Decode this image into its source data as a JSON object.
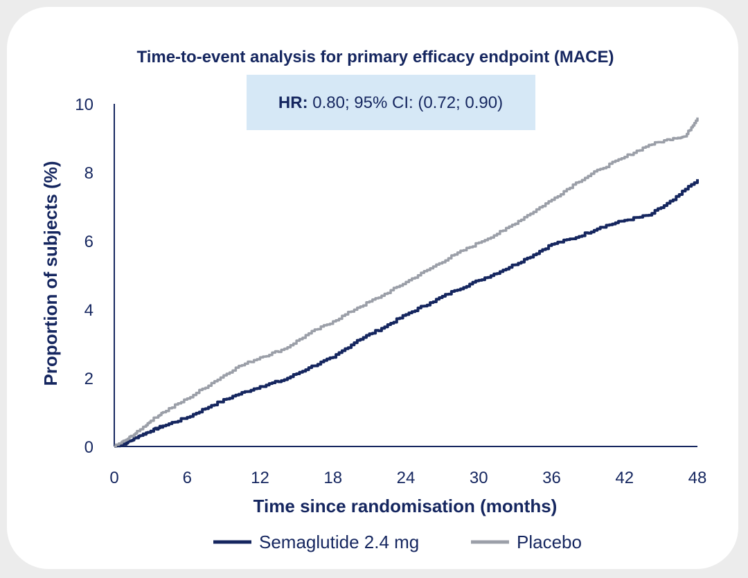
{
  "chart_data": {
    "type": "line",
    "title": "Time-to-event analysis for primary efficacy endpoint (MACE)",
    "xlabel": "Time since randomisation (months)",
    "ylabel": "Proportion of subjects (%)",
    "xlim": [
      0,
      48
    ],
    "ylim": [
      0,
      10
    ],
    "xticks": [
      "0",
      "6",
      "12",
      "18",
      "24",
      "30",
      "36",
      "42",
      "48"
    ],
    "yticks": [
      "0",
      "2",
      "4",
      "6",
      "8",
      "10"
    ],
    "grid": false,
    "legend_position": "bottom",
    "annotation": {
      "label": "HR:",
      "text": " 0.80; 95% CI: (0.72; 0.90)",
      "box_color": "#d6e8f6"
    },
    "series": [
      {
        "name": "Semaglutide 2.4 mg",
        "color": "#15265f",
        "x": [
          0,
          1,
          2,
          3,
          4,
          6,
          8,
          10,
          12,
          14,
          16,
          18,
          20,
          22,
          24,
          26,
          28,
          30,
          32,
          34,
          36,
          38,
          40,
          42,
          44,
          46,
          48
        ],
        "y": [
          0,
          0.1,
          0.3,
          0.45,
          0.6,
          0.85,
          1.2,
          1.5,
          1.75,
          1.95,
          2.3,
          2.6,
          3.1,
          3.45,
          3.85,
          4.2,
          4.55,
          4.85,
          5.15,
          5.5,
          5.9,
          6.1,
          6.4,
          6.6,
          6.75,
          7.2,
          7.8
        ]
      },
      {
        "name": "Placebo",
        "color": "#9b9fa8",
        "x": [
          0,
          1,
          2,
          3,
          4,
          6,
          8,
          10,
          12,
          14,
          16,
          18,
          20,
          22,
          24,
          26,
          28,
          30,
          32,
          34,
          36,
          38,
          40,
          42,
          44,
          46,
          47,
          48
        ],
        "y": [
          0,
          0.2,
          0.45,
          0.75,
          1.0,
          1.4,
          1.85,
          2.3,
          2.6,
          2.85,
          3.3,
          3.65,
          4.05,
          4.4,
          4.8,
          5.2,
          5.6,
          5.95,
          6.3,
          6.75,
          7.2,
          7.7,
          8.1,
          8.45,
          8.8,
          9.0,
          9.05,
          9.6
        ]
      }
    ]
  }
}
